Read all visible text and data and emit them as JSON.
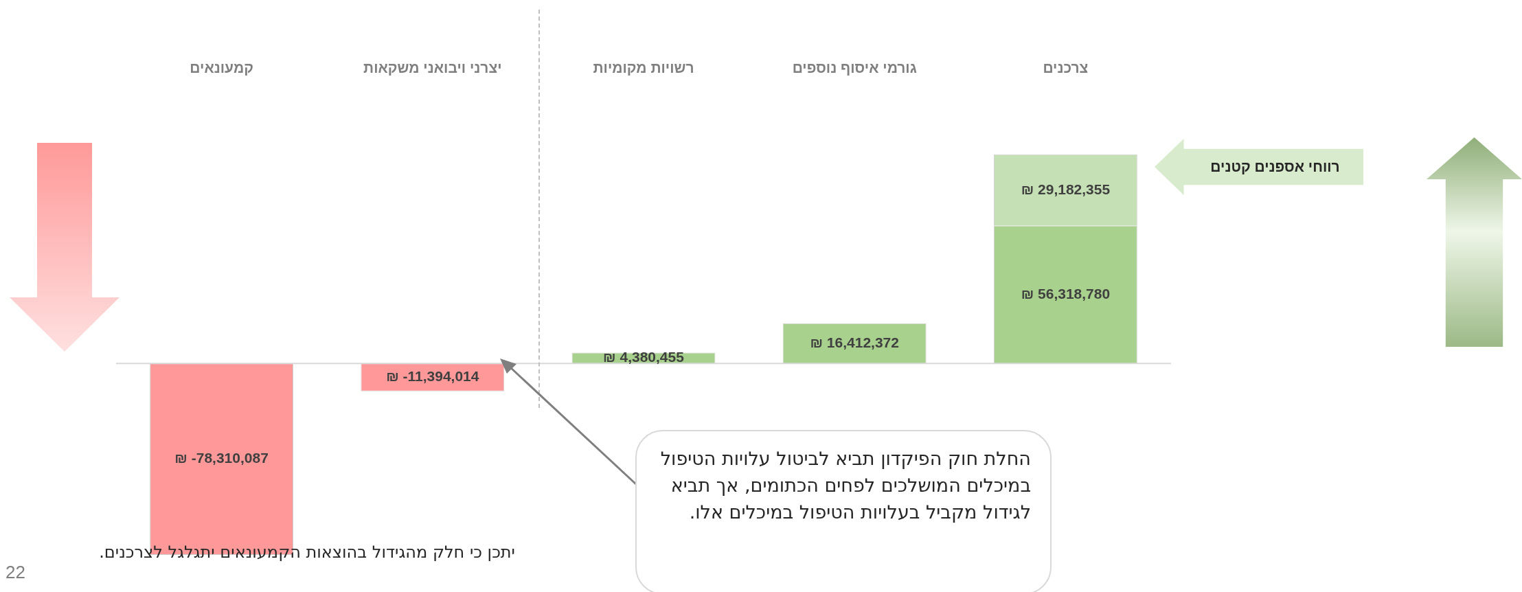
{
  "chart_data": {
    "type": "bar",
    "stacked": true,
    "categories": [
      "קמעונאים",
      "יצרני ויבואני משקאות",
      "רשויות מקומיות",
      "גורמי איסוף נוספים",
      "צרכנים"
    ],
    "series": [
      {
        "colors": [
          "#ff9999",
          "#ff9999",
          "#a9d18e",
          "#a9d18e",
          "#a9d18e"
        ],
        "values": [
          -78310087,
          -11394014,
          4380455,
          16412372,
          56318780
        ],
        "value_labels": [
          "₪ -78,310,087",
          "₪ -11,394,014",
          "₪ 4,380,455",
          "₪ 16,412,372",
          "₪ 56,318,780"
        ]
      },
      {
        "name": "רווחי אספנים קטנים",
        "color": "#c5e0b4",
        "values": [
          null,
          null,
          null,
          null,
          29182355
        ],
        "value_labels": [
          null,
          null,
          null,
          null,
          "₪ 29,182,355"
        ]
      }
    ],
    "tick_labels": "x",
    "grid": false,
    "legend": false,
    "annotations": [
      "החלת חוק הפיקדון תביא לביטול עלויות הטיפול במיכלים המושלכים לפחים הכתומים, אך תביא לגידול מקביל בעלויות הטיפול במיכלים אלו.",
      "יתכן כי חלק מהגידול בהוצאות הקמעונאים יתגלגל לצרכנים.",
      "22"
    ]
  }
}
